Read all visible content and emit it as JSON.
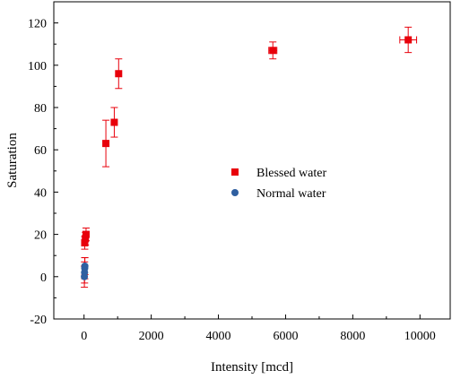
{
  "chart_data": {
    "type": "scatter",
    "title": "",
    "xlabel": "Intensity [mcd]",
    "ylabel": "Saturation",
    "xlim": [
      -900,
      10900
    ],
    "ylim": [
      -20,
      130
    ],
    "xticks": [
      0,
      2000,
      4000,
      6000,
      8000,
      10000
    ],
    "yticks": [
      -20,
      0,
      20,
      40,
      60,
      80,
      100,
      120
    ],
    "grid": false,
    "legend_position": "center",
    "series": [
      {
        "name": "Blessed water",
        "marker": "square",
        "color": "#e8000b",
        "points": [
          {
            "x": 20,
            "y": 16,
            "yerr": 3,
            "xerr": 0
          },
          {
            "x": 40,
            "y": 18,
            "yerr": 3,
            "xerr": 0
          },
          {
            "x": 60,
            "y": 20,
            "yerr": 3,
            "xerr": 0
          },
          {
            "x": 650,
            "y": 63,
            "yerr": 11,
            "xerr": 0
          },
          {
            "x": 900,
            "y": 73,
            "yerr": 7,
            "xerr": 0
          },
          {
            "x": 1030,
            "y": 96,
            "yerr": 7,
            "xerr": 0
          },
          {
            "x": 5620,
            "y": 107,
            "yerr": 4,
            "xerr": 120
          },
          {
            "x": 9650,
            "y": 112,
            "yerr": 6,
            "xerr": 250
          }
        ]
      },
      {
        "name": "Normal water",
        "marker": "circle",
        "color": "#2f5fa0",
        "points": [
          {
            "x": 10,
            "y": 0,
            "yerr": 5,
            "xerr": 0
          },
          {
            "x": 15,
            "y": 2,
            "yerr": 5,
            "xerr": 0
          },
          {
            "x": 20,
            "y": 4,
            "yerr": 5,
            "xerr": 0
          },
          {
            "x": 25,
            "y": 5,
            "yerr": 4,
            "xerr": 0
          }
        ]
      }
    ],
    "errorbar_color": "#e8000b"
  }
}
